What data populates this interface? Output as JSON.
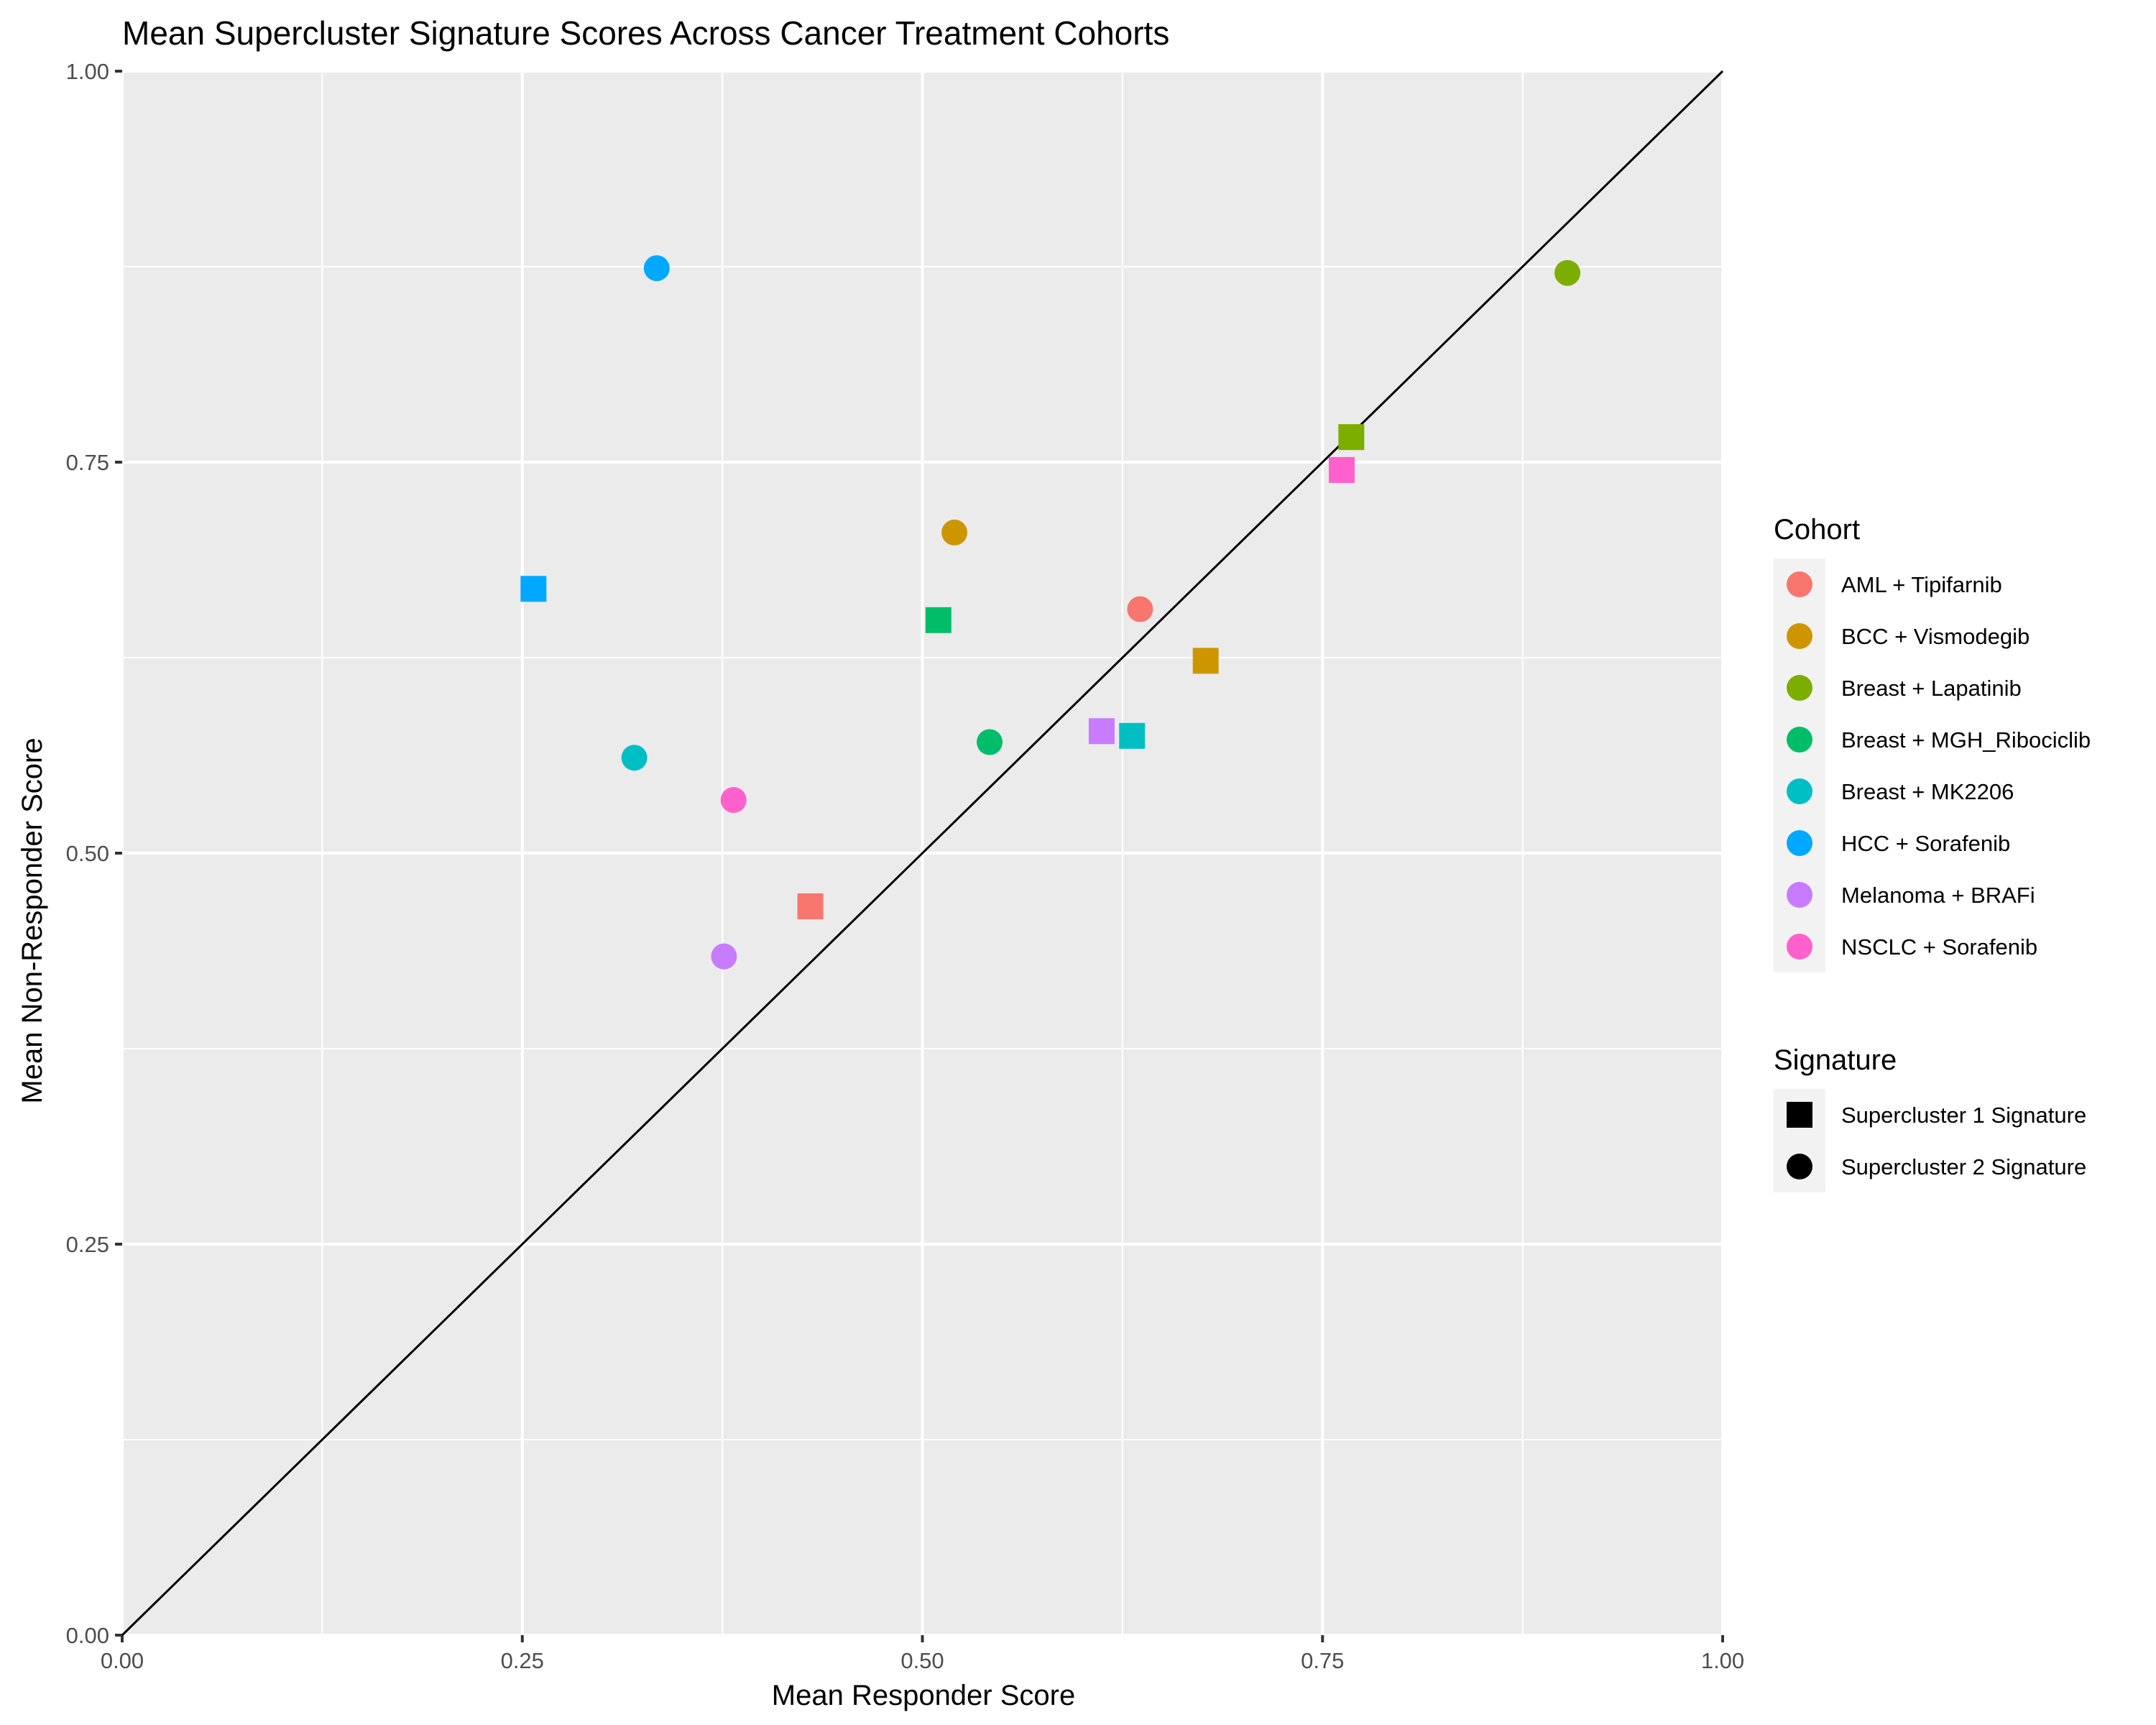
{
  "chart_data": {
    "type": "scatter",
    "title": "Mean Supercluster Signature Scores Across Cancer Treatment Cohorts",
    "xlabel": "Mean Responder Score",
    "ylabel": "Mean Non-Responder Score",
    "xlim": [
      0,
      1
    ],
    "ylim": [
      0,
      1
    ],
    "x_ticks": [
      "0.00",
      "0.25",
      "0.50",
      "0.75",
      "1.00"
    ],
    "y_ticks": [
      "0.00",
      "0.25",
      "0.50",
      "0.75",
      "1.00"
    ],
    "grid": true,
    "reference_line": {
      "type": "identity",
      "color": "#000000"
    },
    "legend_placement": "right",
    "legend": {
      "cohort_title": "Cohort",
      "signature_title": "Signature",
      "signatures": [
        {
          "name": "Supercluster 1 Signature",
          "shape": "square"
        },
        {
          "name": "Supercluster 2 Signature",
          "shape": "circle"
        }
      ]
    },
    "series": [
      {
        "name": "AML + Tipifarnib",
        "color": "#F8766D",
        "points": [
          {
            "x": 0.43,
            "y": 0.466,
            "signature": "Supercluster 1 Signature"
          },
          {
            "x": 0.636,
            "y": 0.656,
            "signature": "Supercluster 2 Signature"
          }
        ]
      },
      {
        "name": "BCC + Vismodegib",
        "color": "#CD9600",
        "points": [
          {
            "x": 0.677,
            "y": 0.623,
            "signature": "Supercluster 1 Signature"
          },
          {
            "x": 0.52,
            "y": 0.705,
            "signature": "Supercluster 2 Signature"
          }
        ]
      },
      {
        "name": "Breast + Lapatinib",
        "color": "#7CAE00",
        "points": [
          {
            "x": 0.768,
            "y": 0.766,
            "signature": "Supercluster 1 Signature"
          },
          {
            "x": 0.903,
            "y": 0.871,
            "signature": "Supercluster 2 Signature"
          }
        ]
      },
      {
        "name": "Breast + MGH_Ribociclib",
        "color": "#00BE67",
        "points": [
          {
            "x": 0.51,
            "y": 0.649,
            "signature": "Supercluster 1 Signature"
          },
          {
            "x": 0.542,
            "y": 0.571,
            "signature": "Supercluster 2 Signature"
          }
        ]
      },
      {
        "name": "Breast + MK2206",
        "color": "#00BFC4",
        "points": [
          {
            "x": 0.631,
            "y": 0.575,
            "signature": "Supercluster 1 Signature"
          },
          {
            "x": 0.32,
            "y": 0.561,
            "signature": "Supercluster 2 Signature"
          }
        ]
      },
      {
        "name": "HCC + Sorafenib",
        "color": "#00A9FF",
        "points": [
          {
            "x": 0.257,
            "y": 0.669,
            "signature": "Supercluster 1 Signature"
          },
          {
            "x": 0.334,
            "y": 0.874,
            "signature": "Supercluster 2 Signature"
          }
        ]
      },
      {
        "name": "Melanoma + BRAFi",
        "color": "#C77CFF",
        "points": [
          {
            "x": 0.612,
            "y": 0.578,
            "signature": "Supercluster 1 Signature"
          },
          {
            "x": 0.376,
            "y": 0.434,
            "signature": "Supercluster 2 Signature"
          }
        ]
      },
      {
        "name": "NSCLC + Sorafenib",
        "color": "#FF61CC",
        "points": [
          {
            "x": 0.762,
            "y": 0.745,
            "signature": "Supercluster 1 Signature"
          },
          {
            "x": 0.382,
            "y": 0.534,
            "signature": "Supercluster 2 Signature"
          }
        ]
      }
    ]
  }
}
